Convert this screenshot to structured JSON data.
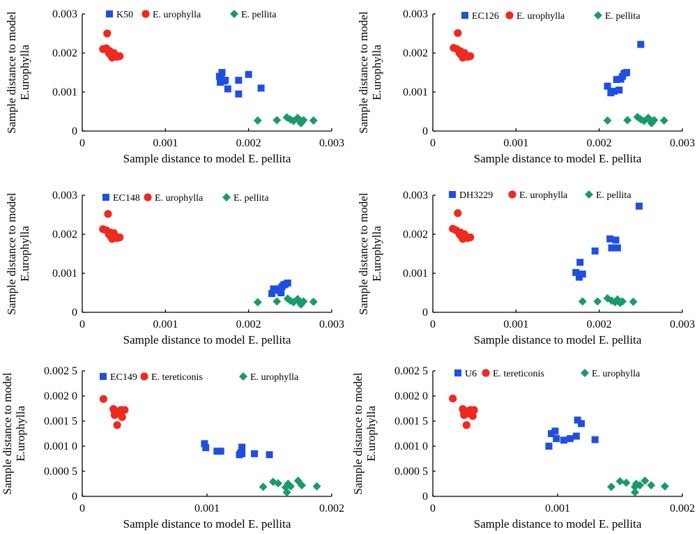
{
  "colors": {
    "blue": "#1f4fe0",
    "red": "#ee2a1f",
    "green": "#1a9a6a"
  },
  "chart_data": [
    {
      "type": "scatter",
      "xlabel": "Sample distance to model E. pellita",
      "ylabel": "Sample distance to model E.urophylla",
      "xlim": [
        0,
        0.003
      ],
      "ylim": [
        0,
        0.003
      ],
      "x_ticks": [
        "0",
        "0.001",
        "0.002",
        "0.003"
      ],
      "y_ticks": [
        "0",
        "0.001",
        "0.002",
        "0.003"
      ],
      "legend": "top",
      "series": [
        {
          "name": "K50",
          "marker": "square",
          "color": "blue",
          "points": [
            [
              0.00165,
              0.0014
            ],
            [
              0.00168,
              0.0015
            ],
            [
              0.00167,
              0.00132
            ],
            [
              0.0017,
              0.00128
            ],
            [
              0.00166,
              0.00125
            ],
            [
              0.00172,
              0.0013
            ],
            [
              0.00175,
              0.00108
            ],
            [
              0.00188,
              0.00095
            ],
            [
              0.00188,
              0.0013
            ],
            [
              0.002,
              0.00145
            ],
            [
              0.00215,
              0.0011
            ]
          ]
        },
        {
          "name": "E. urophylla",
          "marker": "circle",
          "color": "red",
          "points": [
            [
              0.0003,
              0.0025
            ],
            [
              0.00025,
              0.0021
            ],
            [
              0.00029,
              0.00212
            ],
            [
              0.00032,
              0.002
            ],
            [
              0.00034,
              0.00195
            ],
            [
              0.00036,
              0.00188
            ],
            [
              0.00038,
              0.002
            ],
            [
              0.0004,
              0.00193
            ],
            [
              0.00042,
              0.0019
            ],
            [
              0.00045,
              0.00192
            ],
            [
              0.00033,
              0.00205
            ]
          ]
        },
        {
          "name": "E. pellita",
          "marker": "diamond",
          "color": "green",
          "points": [
            [
              0.00211,
              0.00027
            ],
            [
              0.00234,
              0.00028
            ],
            [
              0.00246,
              0.00035
            ],
            [
              0.0025,
              0.0003
            ],
            [
              0.00254,
              0.00026
            ],
            [
              0.00259,
              0.00034
            ],
            [
              0.00262,
              0.00025
            ],
            [
              0.00263,
              0.0002
            ],
            [
              0.00266,
              0.00028
            ],
            [
              0.00278,
              0.00027
            ]
          ]
        }
      ]
    },
    {
      "type": "scatter",
      "xlabel": "Sample distance to model E. pellita",
      "ylabel": "Sample distance to model E.urophylla",
      "xlim": [
        0,
        0.003
      ],
      "ylim": [
        0,
        0.003
      ],
      "x_ticks": [
        "0",
        "0.001",
        "0.002",
        "0.003"
      ],
      "y_ticks": [
        "0",
        "0.001",
        "0.002",
        "0.003"
      ],
      "legend": "top",
      "series": [
        {
          "name": "EC126",
          "marker": "square",
          "color": "blue",
          "points": [
            [
              0.0021,
              0.00115
            ],
            [
              0.00214,
              0.00098
            ],
            [
              0.00218,
              0.00102
            ],
            [
              0.00221,
              0.00132
            ],
            [
              0.00224,
              0.00105
            ],
            [
              0.00226,
              0.00133
            ],
            [
              0.00228,
              0.0014
            ],
            [
              0.0023,
              0.00148
            ],
            [
              0.00233,
              0.0015
            ],
            [
              0.0025,
              0.00222
            ]
          ]
        },
        {
          "name": "E. urophylla",
          "marker": "circle",
          "color": "red",
          "points": [
            [
              0.0003,
              0.00251
            ],
            [
              0.00025,
              0.00213
            ],
            [
              0.00029,
              0.0021
            ],
            [
              0.00032,
              0.002
            ],
            [
              0.00034,
              0.00195
            ],
            [
              0.00036,
              0.00188
            ],
            [
              0.00038,
              0.002
            ],
            [
              0.0004,
              0.00193
            ],
            [
              0.00042,
              0.0019
            ],
            [
              0.00045,
              0.00192
            ],
            [
              0.00033,
              0.00205
            ]
          ]
        },
        {
          "name": "E. pellita",
          "marker": "diamond",
          "color": "green",
          "points": [
            [
              0.0021,
              0.00027
            ],
            [
              0.00234,
              0.00028
            ],
            [
              0.00246,
              0.00036
            ],
            [
              0.0025,
              0.0003
            ],
            [
              0.00254,
              0.00026
            ],
            [
              0.00259,
              0.00034
            ],
            [
              0.00262,
              0.00025
            ],
            [
              0.00263,
              0.0002
            ],
            [
              0.00266,
              0.00028
            ],
            [
              0.00278,
              0.00027
            ]
          ]
        }
      ]
    },
    {
      "type": "scatter",
      "xlabel": "Sample distance to model E. pellita",
      "ylabel": "Sample distance to model E.urophylla",
      "xlim": [
        0,
        0.003
      ],
      "ylim": [
        0,
        0.003
      ],
      "x_ticks": [
        "0",
        "0.001",
        "0.002",
        "0.003"
      ],
      "y_ticks": [
        "0",
        "0.001",
        "0.002",
        "0.003"
      ],
      "legend": "top",
      "series": [
        {
          "name": "EC148",
          "marker": "square",
          "color": "blue",
          "points": [
            [
              0.00228,
              0.00048
            ],
            [
              0.0023,
              0.0006
            ],
            [
              0.00233,
              0.00057
            ],
            [
              0.00236,
              0.0006
            ],
            [
              0.00238,
              0.00055
            ],
            [
              0.0024,
              0.00065
            ],
            [
              0.00242,
              0.0007
            ],
            [
              0.00244,
              0.00072
            ],
            [
              0.00247,
              0.00075
            ],
            [
              0.00239,
              0.0005
            ]
          ]
        },
        {
          "name": "E. urophylla",
          "marker": "circle",
          "color": "red",
          "points": [
            [
              0.00031,
              0.00252
            ],
            [
              0.00025,
              0.00213
            ],
            [
              0.00029,
              0.0021
            ],
            [
              0.00032,
              0.002
            ],
            [
              0.00034,
              0.00195
            ],
            [
              0.00036,
              0.00188
            ],
            [
              0.00038,
              0.00203
            ],
            [
              0.0004,
              0.00193
            ],
            [
              0.00042,
              0.0019
            ],
            [
              0.00045,
              0.00192
            ],
            [
              0.00033,
              0.00205
            ]
          ]
        },
        {
          "name": "E. pellita",
          "marker": "diamond",
          "color": "green",
          "points": [
            [
              0.00211,
              0.00026
            ],
            [
              0.00234,
              0.00028
            ],
            [
              0.00247,
              0.00035
            ],
            [
              0.0025,
              0.0003
            ],
            [
              0.00254,
              0.00026
            ],
            [
              0.00259,
              0.00034
            ],
            [
              0.00262,
              0.00025
            ],
            [
              0.00263,
              0.0002
            ],
            [
              0.00266,
              0.00028
            ],
            [
              0.00278,
              0.00027
            ]
          ]
        }
      ]
    },
    {
      "type": "scatter",
      "xlabel": "Sample distance to model E. pellita",
      "ylabel": "Sample distance to model E.urophylla",
      "xlim": [
        0,
        0.003
      ],
      "ylim": [
        0,
        0.003
      ],
      "x_ticks": [
        "0",
        "0.001",
        "0.002",
        "0.003"
      ],
      "y_ticks": [
        "0",
        "0.001",
        "0.002",
        "0.003"
      ],
      "legend": "top",
      "series": [
        {
          "name": "DH3229",
          "marker": "square",
          "color": "blue",
          "points": [
            [
              0.00172,
              0.00102
            ],
            [
              0.00176,
              0.0009
            ],
            [
              0.00177,
              0.00128
            ],
            [
              0.0018,
              0.00098
            ],
            [
              0.00195,
              0.00157
            ],
            [
              0.00213,
              0.00188
            ],
            [
              0.00215,
              0.00165
            ],
            [
              0.0022,
              0.00185
            ],
            [
              0.00222,
              0.00165
            ],
            [
              0.00248,
              0.00272
            ]
          ]
        },
        {
          "name": "E. urophylla",
          "marker": "circle",
          "color": "red",
          "points": [
            [
              0.0003,
              0.00254
            ],
            [
              0.00024,
              0.00214
            ],
            [
              0.00028,
              0.0021
            ],
            [
              0.00032,
              0.002
            ],
            [
              0.00034,
              0.00195
            ],
            [
              0.00036,
              0.00188
            ],
            [
              0.00038,
              0.002
            ],
            [
              0.0004,
              0.00193
            ],
            [
              0.00042,
              0.0019
            ],
            [
              0.00045,
              0.00192
            ],
            [
              0.00033,
              0.00205
            ]
          ]
        },
        {
          "name": "E. pellita",
          "marker": "diamond",
          "color": "green",
          "points": [
            [
              0.0018,
              0.00028
            ],
            [
              0.00198,
              0.00028
            ],
            [
              0.0021,
              0.00036
            ],
            [
              0.00215,
              0.0003
            ],
            [
              0.00219,
              0.00026
            ],
            [
              0.00222,
              0.00033
            ],
            [
              0.00225,
              0.00024
            ],
            [
              0.00228,
              0.00028
            ],
            [
              0.00241,
              0.00027
            ]
          ]
        }
      ]
    },
    {
      "type": "scatter",
      "xlabel": "Sample distance to model E. pellita",
      "ylabel": "Sample distance to model E.urophylla",
      "xlim": [
        0,
        0.002
      ],
      "ylim": [
        0,
        0.0025
      ],
      "x_ticks": [
        "0",
        "0.001",
        "0.002"
      ],
      "y_ticks": [
        "0",
        "0.000 5",
        "0.001 0",
        "0.001 5",
        "0.002 0",
        "0.002 5"
      ],
      "legend": "top",
      "series": [
        {
          "name": "EC149",
          "marker": "square",
          "color": "blue",
          "points": [
            [
              0.00098,
              0.00105
            ],
            [
              0.00099,
              0.00097
            ],
            [
              0.00108,
              0.0009
            ],
            [
              0.00111,
              0.0009
            ],
            [
              0.00126,
              0.00083
            ],
            [
              0.00127,
              0.00087
            ],
            [
              0.00128,
              0.00098
            ],
            [
              0.00128,
              0.00085
            ],
            [
              0.00138,
              0.00085
            ],
            [
              0.0015,
              0.00083
            ]
          ]
        },
        {
          "name": "E. tereticonis",
          "marker": "circle",
          "color": "red",
          "points": [
            [
              0.00017,
              0.00194
            ],
            [
              0.00025,
              0.00174
            ],
            [
              0.00026,
              0.00168
            ],
            [
              0.00026,
              0.00162
            ],
            [
              0.00027,
              0.0017
            ],
            [
              0.00028,
              0.00142
            ],
            [
              0.00029,
              0.00165
            ],
            [
              0.00031,
              0.00172
            ],
            [
              0.00032,
              0.00158
            ],
            [
              0.00034,
              0.00172
            ]
          ]
        },
        {
          "name": "E. urophylla",
          "marker": "diamond",
          "color": "green",
          "points": [
            [
              0.00145,
              0.00019
            ],
            [
              0.00153,
              0.00029
            ],
            [
              0.00157,
              0.00026
            ],
            [
              0.00163,
              0.00018
            ],
            [
              0.00164,
              8e-05
            ],
            [
              0.00165,
              0.00025
            ],
            [
              0.00167,
              0.0002
            ],
            [
              0.00173,
              0.00031
            ],
            [
              0.00176,
              0.00022
            ],
            [
              0.00188,
              0.0002
            ]
          ]
        }
      ]
    },
    {
      "type": "scatter",
      "xlabel": "Sample distance to model E. pellita",
      "ylabel": "Sample distance to model E.urophylla",
      "xlim": [
        0,
        0.002
      ],
      "ylim": [
        0,
        0.0025
      ],
      "x_ticks": [
        "0",
        "0.001",
        "0.002"
      ],
      "y_ticks": [
        "0",
        "0.000 5",
        "0.001 0",
        "0.001 5",
        "0.002 0",
        "0.002 5"
      ],
      "legend": "top",
      "series": [
        {
          "name": "U6",
          "marker": "square",
          "color": "blue",
          "points": [
            [
              0.00093,
              0.001
            ],
            [
              0.00095,
              0.00125
            ],
            [
              0.00098,
              0.0013
            ],
            [
              0.00099,
              0.00115
            ],
            [
              0.00105,
              0.00112
            ],
            [
              0.0011,
              0.00115
            ],
            [
              0.00115,
              0.0012
            ],
            [
              0.00116,
              0.00152
            ],
            [
              0.00119,
              0.00145
            ],
            [
              0.0013,
              0.00113
            ]
          ]
        },
        {
          "name": "E. tereticonis",
          "marker": "circle",
          "color": "red",
          "points": [
            [
              0.00016,
              0.00195
            ],
            [
              0.00024,
              0.00174
            ],
            [
              0.00025,
              0.00168
            ],
            [
              0.00025,
              0.00162
            ],
            [
              0.00026,
              0.0017
            ],
            [
              0.00027,
              0.00142
            ],
            [
              0.00028,
              0.00165
            ],
            [
              0.0003,
              0.00172
            ],
            [
              0.00032,
              0.0016
            ],
            [
              0.00033,
              0.00172
            ]
          ]
        },
        {
          "name": "E. urophylla",
          "marker": "diamond",
          "color": "green",
          "points": [
            [
              0.00143,
              0.00019
            ],
            [
              0.0015,
              0.0003
            ],
            [
              0.00155,
              0.00027
            ],
            [
              0.00162,
              0.00019
            ],
            [
              0.00162,
              8e-05
            ],
            [
              0.00163,
              0.00025
            ],
            [
              0.00166,
              0.00022
            ],
            [
              0.0017,
              0.00031
            ],
            [
              0.00175,
              0.00022
            ],
            [
              0.00186,
              0.0002
            ]
          ]
        }
      ]
    }
  ]
}
